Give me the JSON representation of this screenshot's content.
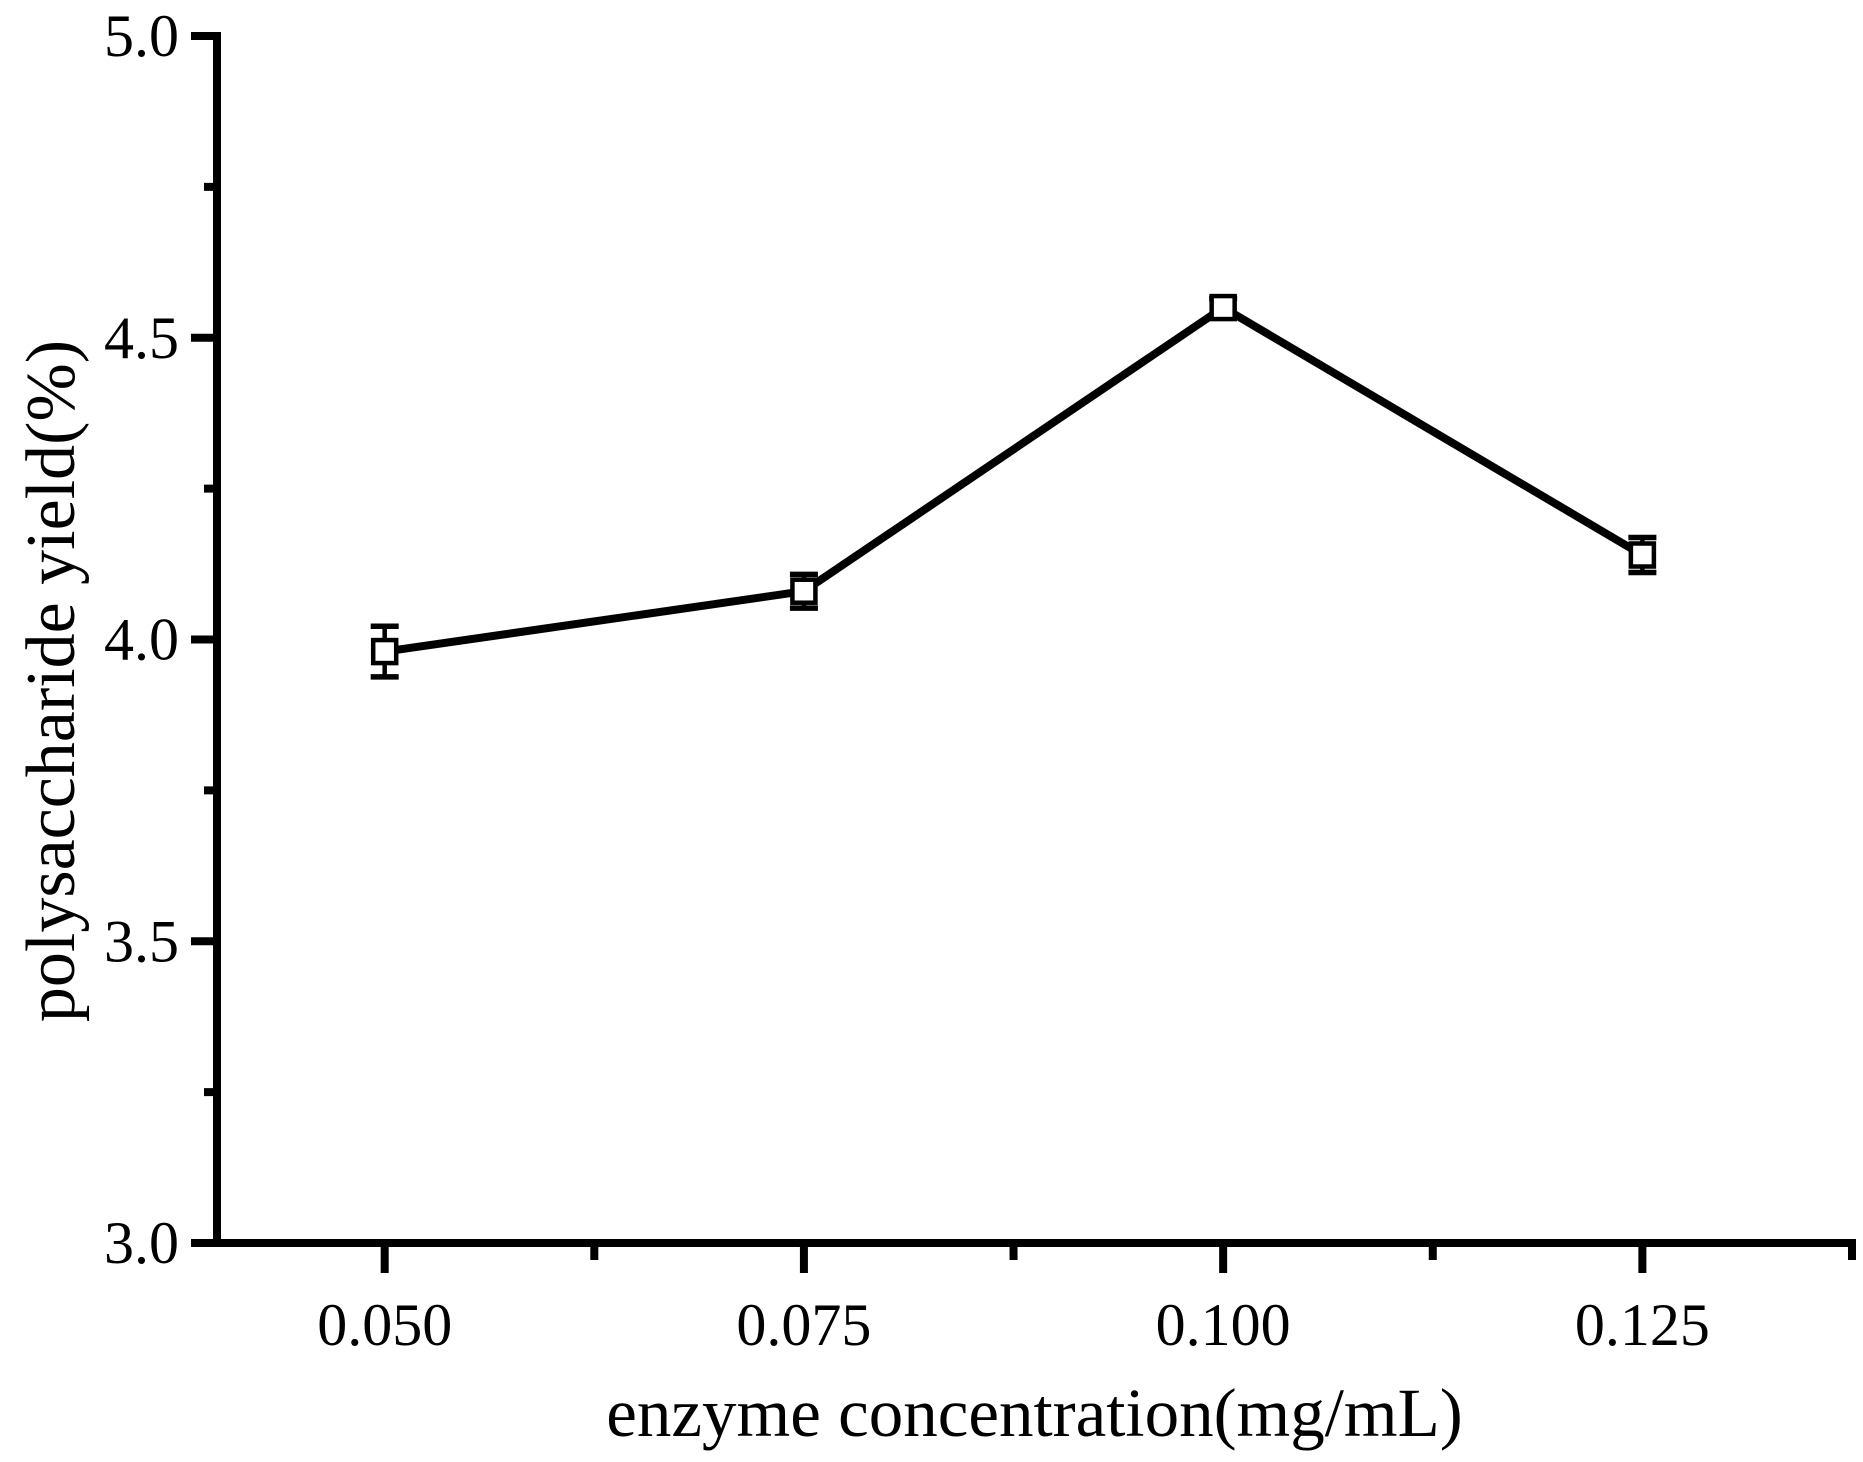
{
  "chart_data": {
    "type": "line",
    "title": "",
    "xlabel": "enzyme concentration(mg/mL)",
    "ylabel": "polysaccharide yield(%)",
    "x": [
      0.05,
      0.075,
      0.1,
      0.125
    ],
    "series": [
      {
        "name": "polysaccharide yield",
        "values": [
          3.98,
          4.08,
          4.55,
          4.14
        ],
        "y_errors": [
          0.042,
          0.028,
          0.015,
          0.029
        ],
        "marker": "open-square",
        "line_color": "#000000",
        "marker_fill": "#ffffff"
      }
    ],
    "xlim": [
      0.04,
      0.1375
    ],
    "ylim": [
      3.0,
      5.0
    ],
    "x_major_ticks": [
      0.05,
      0.075,
      0.1,
      0.125
    ],
    "x_tick_labels": [
      "0.050",
      "0.075",
      "0.100",
      "0.125"
    ],
    "x_minor_ticks": [
      0.0625,
      0.0875,
      0.1125,
      0.1375
    ],
    "y_major_ticks": [
      3.0,
      3.5,
      4.0,
      4.5,
      5.0
    ],
    "y_tick_labels": [
      "3.0",
      "3.5",
      "4.0",
      "4.5",
      "5.0"
    ],
    "y_minor_ticks": [
      3.25,
      3.75,
      4.25,
      4.75
    ],
    "grid": false,
    "legend": false,
    "axis_color": "#000000",
    "background": "#ffffff",
    "tick_direction": "out"
  }
}
